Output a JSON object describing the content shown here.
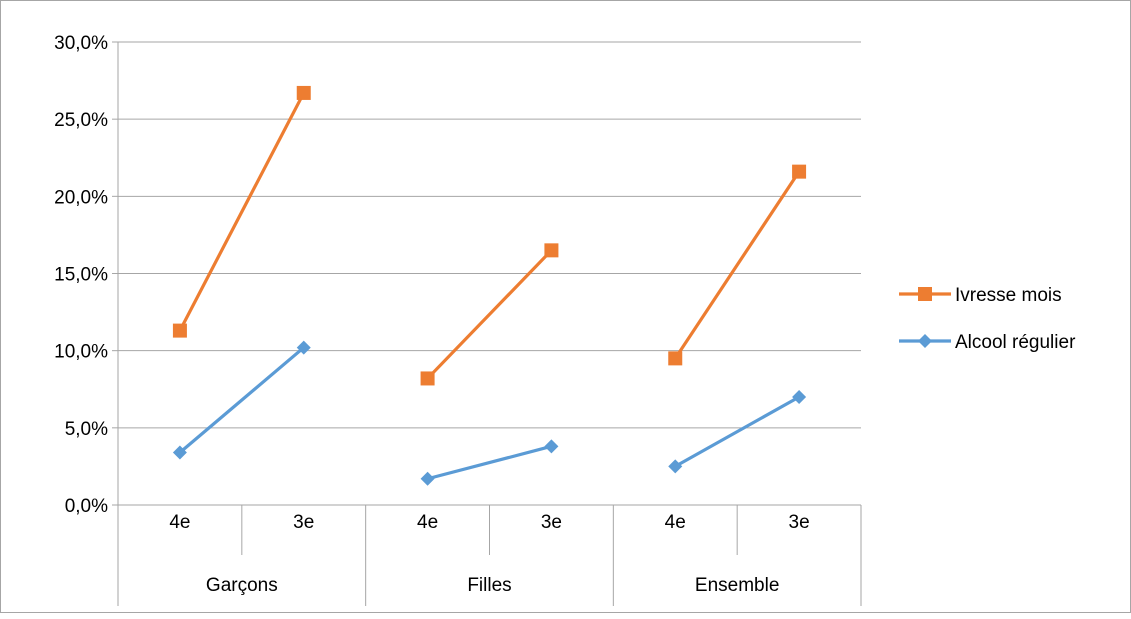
{
  "chart_data": {
    "type": "line",
    "groups": [
      "Garçons",
      "Filles",
      "Ensemble"
    ],
    "categories": [
      "4e",
      "3e",
      "4e",
      "3e",
      "4e",
      "3e"
    ],
    "ylim": [
      0,
      30
    ],
    "y_ticks": [
      "0,0%",
      "5,0%",
      "10,0%",
      "15,0%",
      "20,0%",
      "25,0%",
      "30,0%"
    ],
    "grid": true,
    "legend_position": "right",
    "series": [
      {
        "name": "Ivresse mois",
        "color": "#ed7d31",
        "marker": "square",
        "values": [
          11.3,
          26.7,
          8.2,
          16.5,
          9.5,
          21.6
        ]
      },
      {
        "name": "Alcool régulier",
        "color": "#5b9bd5",
        "marker": "diamond",
        "values": [
          3.4,
          10.2,
          1.7,
          3.8,
          2.5,
          7.0
        ]
      }
    ]
  }
}
